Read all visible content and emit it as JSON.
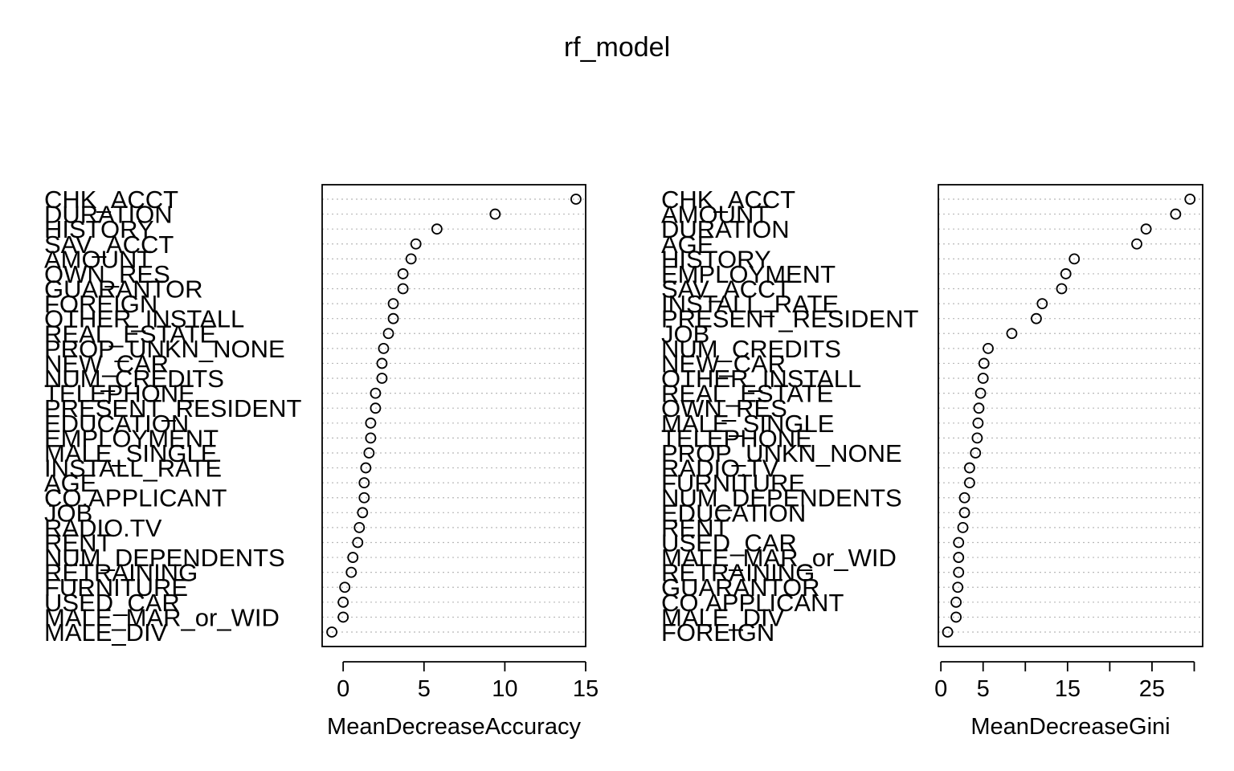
{
  "title": "rf_model",
  "chart_data": [
    {
      "type": "scatter",
      "subtype": "dotchart",
      "xlabel": "MeanDecreaseAccuracy",
      "xlim": [
        -1.3,
        15
      ],
      "xticks": [
        0,
        5,
        10,
        15
      ],
      "grid": true,
      "categories": [
        "CHK_ACCT",
        "DURATION",
        "HISTORY",
        "SAV_ACCT",
        "AMOUNT",
        "OWN_RES",
        "GUARANTOR",
        "FOREIGN",
        "OTHER_INSTALL",
        "REAL_ESTATE",
        "PROP_UNKN_NONE",
        "NEW_CAR",
        "NUM_CREDITS",
        "TELEPHONE",
        "PRESENT_RESIDENT",
        "EDUCATION",
        "EMPLOYMENT",
        "MALE_SINGLE",
        "INSTALL_RATE",
        "AGE",
        "CO.APPLICANT",
        "JOB",
        "RADIO.TV",
        "RENT",
        "NUM_DEPENDENTS",
        "RETRAINING",
        "FURNITURE",
        "USED_CAR",
        "MALE_MAR_or_WID",
        "MALE_DIV"
      ],
      "values": [
        14.4,
        9.4,
        5.8,
        4.5,
        4.2,
        3.7,
        3.7,
        3.1,
        3.1,
        2.8,
        2.5,
        2.4,
        2.4,
        2.0,
        2.0,
        1.7,
        1.7,
        1.6,
        1.4,
        1.3,
        1.3,
        1.2,
        1.0,
        0.9,
        0.6,
        0.5,
        0.1,
        0.0,
        0.0,
        -0.7
      ]
    },
    {
      "type": "scatter",
      "subtype": "dotchart",
      "xlabel": "MeanDecreaseGini",
      "xlim": [
        -0.3,
        31
      ],
      "xticks": [
        0,
        5,
        10,
        15,
        20,
        25,
        30
      ],
      "xticklabels": [
        "0",
        "5",
        "",
        "15",
        "",
        "25",
        ""
      ],
      "grid": true,
      "categories": [
        "CHK_ACCT",
        "AMOUNT",
        "DURATION",
        "AGE",
        "HISTORY",
        "EMPLOYMENT",
        "SAV_ACCT",
        "INSTALL_RATE",
        "PRESENT_RESIDENT",
        "JOB",
        "NUM_CREDITS",
        "NEW_CAR",
        "OTHER_INSTALL",
        "REAL_ESTATE",
        "OWN_RES",
        "MALE_SINGLE",
        "TELEPHONE",
        "PROP_UNKN_NONE",
        "RADIO.TV",
        "FURNITURE",
        "NUM_DEPENDENTS",
        "EDUCATION",
        "RENT",
        "USED_CAR",
        "MALE_MAR_or_WID",
        "RETRAINING",
        "GUARANTOR",
        "CO.APPLICANT",
        "MALE_DIV",
        "FOREIGN"
      ],
      "values": [
        29.5,
        27.8,
        24.3,
        23.2,
        15.8,
        14.8,
        14.3,
        12.0,
        11.3,
        8.4,
        5.6,
        5.1,
        5.0,
        4.7,
        4.5,
        4.4,
        4.3,
        4.1,
        3.4,
        3.4,
        2.8,
        2.8,
        2.6,
        2.1,
        2.1,
        2.1,
        2.0,
        1.8,
        1.8,
        0.8
      ]
    }
  ]
}
